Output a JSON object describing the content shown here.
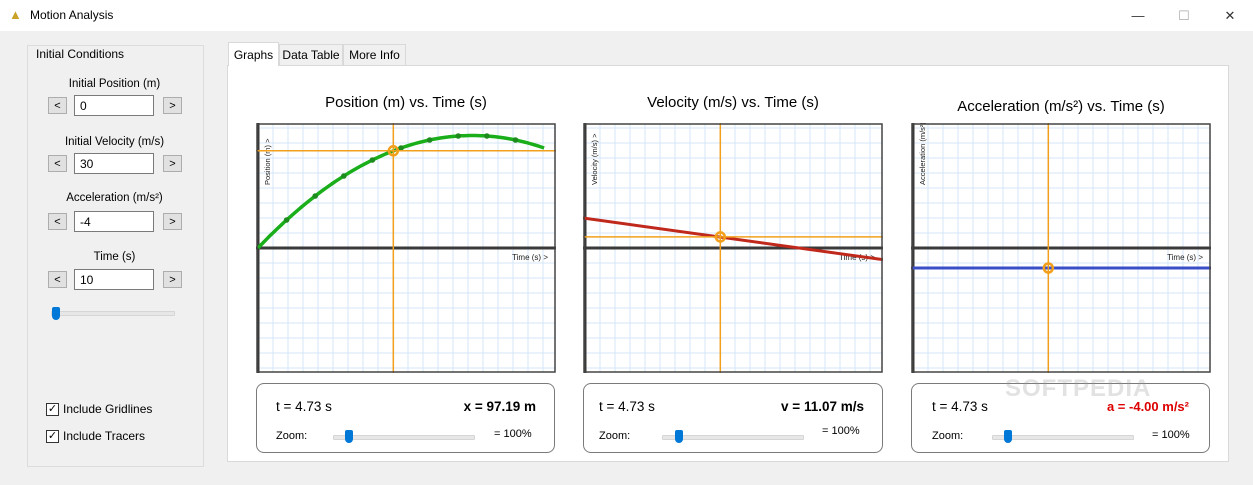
{
  "window": {
    "title": "Motion Analysis",
    "minimize": "—",
    "maximize": "☐",
    "close": "✕"
  },
  "sidebar": {
    "group_title": "Initial Conditions",
    "fields": [
      {
        "label": "Initial Position (m)",
        "value": "0",
        "dec": "<",
        "inc": ">"
      },
      {
        "label": "Initial Velocity (m/s)",
        "value": "30",
        "dec": "<",
        "inc": ">"
      },
      {
        "label": "Acceleration (m/s²)",
        "value": "-4",
        "dec": "<",
        "inc": ">"
      },
      {
        "label": "Time (s)",
        "value": "10",
        "dec": "<",
        "inc": ">"
      }
    ],
    "checkboxes": [
      {
        "label": "Include Gridlines",
        "checked": true
      },
      {
        "label": "Include Tracers",
        "checked": true
      }
    ]
  },
  "tabs": [
    "Graphs",
    "Data Table",
    "More Info"
  ],
  "graphs": [
    {
      "title": "Position (m) vs. Time (s)",
      "ylabel": "Position (m) >",
      "xlabel": "Time (s) >",
      "t_text": "t = 4.73 s",
      "value_text": "x = 97.19 m",
      "zoom_label": "Zoom:",
      "zoom_text": "= 100%",
      "color": "#1aae1a"
    },
    {
      "title": "Velocity (m/s) vs. Time (s)",
      "ylabel": "Velocity (m/s) >",
      "xlabel": "Time (s) >",
      "t_text": "t = 4.73 s",
      "value_text": "v = 11.07 m/s",
      "zoom_label": "Zoom:",
      "zoom_text": "= 100%",
      "color": "#c0281c"
    },
    {
      "title": "Acceleration (m/s²) vs. Time (s)",
      "ylabel": "Acceleration (m/s²) >",
      "xlabel": "Time (s) >",
      "t_text": "t = 4.73 s",
      "value_text": "a =  -4.00 m/s²",
      "zoom_label": "Zoom:",
      "zoom_text": "= 100%",
      "color": "#3a4fc7"
    }
  ],
  "watermark": "SOFTPEDIA",
  "chart_data": [
    {
      "type": "line",
      "title": "Position (m) vs. Time (s)",
      "xlabel": "Time (s) >",
      "ylabel": "Position (m) >",
      "initial_position": 0,
      "initial_velocity": 30,
      "acceleration": -4,
      "t_max": 10,
      "tracer_times": [
        1,
        2,
        3,
        4,
        5,
        6,
        7,
        8,
        9
      ],
      "current_t": 4.73,
      "current_value": 97.19
    },
    {
      "type": "line",
      "title": "Velocity (m/s) vs. Time (s)",
      "xlabel": "Time (s) >",
      "ylabel": "Velocity (m/s) >",
      "current_t": 4.73,
      "current_value": 11.07
    },
    {
      "type": "line",
      "title": "Acceleration (m/s²) vs. Time (s)",
      "xlabel": "Time (s) >",
      "ylabel": "Acceleration (m/s²) >",
      "current_t": 4.73,
      "current_value": -4.0
    }
  ]
}
